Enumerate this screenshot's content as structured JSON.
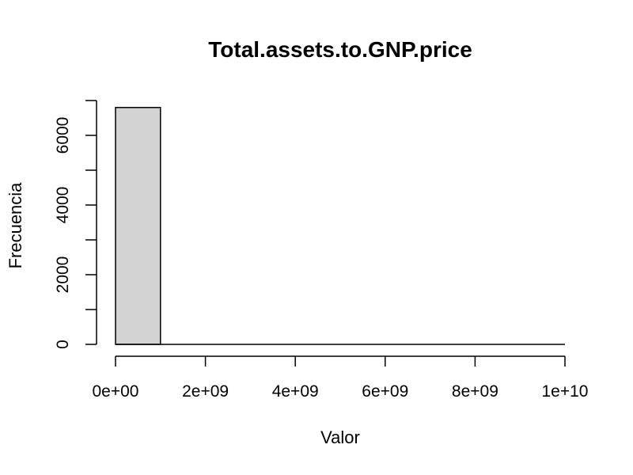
{
  "chart_data": {
    "type": "bar",
    "title": "Total.assets.to.GNP.price",
    "xlabel": "Valor",
    "ylabel": "Frecuencia",
    "bin_width": 1000000000,
    "bins": [
      {
        "start": 0,
        "end": 1000000000,
        "count": 6800
      },
      {
        "start": 1000000000,
        "end": 2000000000,
        "count": 0
      },
      {
        "start": 2000000000,
        "end": 3000000000,
        "count": 0
      },
      {
        "start": 3000000000,
        "end": 4000000000,
        "count": 0
      },
      {
        "start": 4000000000,
        "end": 5000000000,
        "count": 0
      },
      {
        "start": 5000000000,
        "end": 6000000000,
        "count": 0
      },
      {
        "start": 6000000000,
        "end": 7000000000,
        "count": 0
      },
      {
        "start": 7000000000,
        "end": 8000000000,
        "count": 0
      },
      {
        "start": 8000000000,
        "end": 9000000000,
        "count": 0
      },
      {
        "start": 9000000000,
        "end": 10000000000,
        "count": 0
      }
    ],
    "xlim": [
      0,
      10000000000
    ],
    "ylim": [
      0,
      7000
    ],
    "x_ticks": [
      0,
      2000000000,
      4000000000,
      6000000000,
      8000000000,
      10000000000
    ],
    "x_tick_labels": [
      "0e+00",
      "2e+09",
      "4e+09",
      "6e+09",
      "8e+09",
      "1e+10"
    ],
    "y_ticks": [
      0,
      1000,
      2000,
      3000,
      4000,
      5000,
      6000,
      7000
    ],
    "y_tick_labels": [
      "0",
      "",
      "2000",
      "",
      "4000",
      "",
      "6000",
      ""
    ],
    "bar_fill": "#d3d3d3",
    "bar_stroke": "#000000",
    "grid": false
  }
}
